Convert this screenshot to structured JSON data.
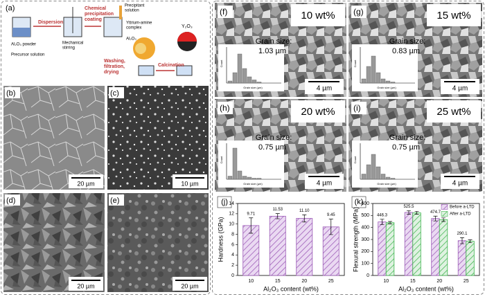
{
  "schematic": {
    "label": "(a)",
    "dispersion": "Dispersion",
    "coating": [
      "Chemical",
      "precipitation",
      "coating"
    ],
    "precipitant": [
      "Precipitant",
      "solution"
    ],
    "stirring": [
      "Mechanical",
      "stirring"
    ],
    "complex": [
      "Yttrium-amine",
      "complex"
    ],
    "powder": "Al₂O₃ powder",
    "precursor": "Precursor solution",
    "al2o3": "Al₂O₃",
    "y2o3": "Y₂O₃",
    "washing": [
      "Washing,",
      "filtration,",
      "drying"
    ],
    "calcination": "Calcination"
  },
  "micrographs": [
    {
      "label": "(b)",
      "scale": "20 µm"
    },
    {
      "label": "(c)",
      "scale": "10 µm"
    },
    {
      "label": "(d)",
      "scale": "20 µm"
    },
    {
      "label": "(e)",
      "scale": "20 µm"
    }
  ],
  "sem": [
    {
      "label": "(f)",
      "content": "10 wt%",
      "grain_label": "Grain size:",
      "grain_size": "1.03 µm",
      "scale": "4 µm",
      "inset_ylabel": "Count",
      "inset_xlabel": "Grain size (µm)"
    },
    {
      "label": "(g)",
      "content": "15 wt%",
      "grain_label": "Grain size:",
      "grain_size": "0.83 µm",
      "scale": "4 µm",
      "inset_ylabel": "Count",
      "inset_xlabel": "Grain size (µm)"
    },
    {
      "label": "(h)",
      "content": "20 wt%",
      "grain_label": "Grain size:",
      "grain_size": "0.75 µm",
      "scale": "4 µm",
      "inset_ylabel": "Count",
      "inset_xlabel": "Grain size (µm)"
    },
    {
      "label": "(i)",
      "content": "25 wt%",
      "grain_label": "Grain size:",
      "grain_size": "0.75 µm",
      "scale": "4 µm",
      "inset_ylabel": "Count",
      "inset_xlabel": "Grain size (µm)"
    }
  ],
  "chart_data": [
    {
      "type": "bar",
      "title": "(j)",
      "categories": [
        "10",
        "15",
        "20",
        "25"
      ],
      "xlabel": "Al₂O₃ content (wt%)",
      "ylabel": "Hardness (GPa)",
      "series": [
        {
          "color": "#9b59b6",
          "values": [
            9.71,
            11.53,
            11.1,
            9.45
          ],
          "value_labels": [
            "9.71",
            "11.53",
            "11.10",
            "9.45"
          ],
          "errors": [
            1.5,
            0.5,
            0.7,
            1.5
          ]
        }
      ],
      "ylim": [
        0,
        14
      ],
      "yticks": [
        0,
        2,
        4,
        6,
        8,
        10,
        12,
        14
      ]
    },
    {
      "type": "bar",
      "title": "(k)",
      "categories": [
        "10",
        "15",
        "20",
        "25"
      ],
      "xlabel": "Al₂O₃ content (wt%)",
      "ylabel": "Flexural strength (MPa)",
      "series": [
        {
          "name": "Before a-LTD",
          "color": "#9b59b6",
          "values": [
            446.3,
            525.5,
            474.7,
            290.1
          ],
          "value_labels": [
            "446.3",
            "525.5",
            "474.7",
            "290.1"
          ],
          "errors": [
            22,
            15,
            20,
            25
          ]
        },
        {
          "name": "After a-LTD",
          "color": "#3cb44b",
          "values": [
            440,
            522,
            465,
            285
          ],
          "errors": [
            10,
            12,
            15,
            12
          ]
        }
      ],
      "ylim": [
        0,
        600
      ],
      "yticks": [
        0,
        100,
        200,
        300,
        400,
        500,
        600
      ],
      "legend": "upper right"
    }
  ]
}
